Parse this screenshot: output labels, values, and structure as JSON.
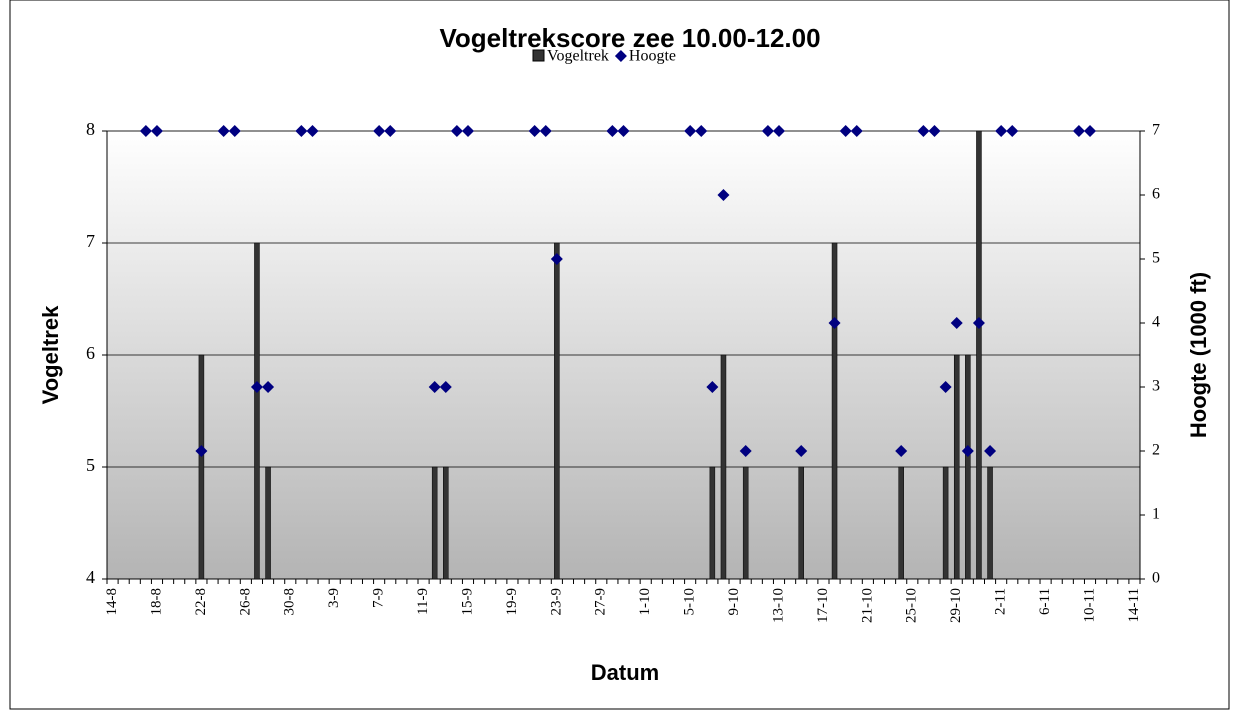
{
  "chart_data": {
    "type": "bar_line",
    "title": "Vogeltrekscore zee 10.00-12.00",
    "x_label": "Datum",
    "y_label": "Vogeltrek",
    "y2_label": "Hoogte (1000 ft)",
    "categories": [
      "14-8",
      null,
      null,
      null,
      "18-8",
      null,
      null,
      null,
      "22-8",
      null,
      null,
      null,
      "26-8",
      null,
      null,
      null,
      "30-8",
      null,
      null,
      null,
      "3-9",
      null,
      null,
      null,
      "7-9",
      null,
      null,
      null,
      "11-9",
      null,
      null,
      null,
      "15-9",
      null,
      null,
      null,
      "19-9",
      null,
      null,
      null,
      "23-9",
      null,
      null,
      null,
      "27-9",
      null,
      null,
      null,
      "1-10",
      null,
      null,
      null,
      "5-10",
      null,
      null,
      null,
      "9-10",
      null,
      null,
      null,
      "13-10",
      null,
      null,
      null,
      "17-10",
      null,
      null,
      null,
      "21-10",
      null,
      null,
      null,
      "25-10",
      null,
      null,
      null,
      "29-10",
      null,
      null,
      null,
      "2-11",
      null,
      null,
      null,
      "6-11",
      null,
      null,
      null,
      "10-11",
      null,
      null,
      null,
      "14-11"
    ],
    "series": [
      {
        "name": "Vogeltrek",
        "type": "bar",
        "color": "#333333",
        "values": [
          null,
          null,
          null,
          null,
          null,
          null,
          null,
          null,
          6,
          null,
          null,
          null,
          null,
          7,
          5,
          null,
          null,
          null,
          null,
          null,
          null,
          null,
          null,
          null,
          null,
          null,
          null,
          null,
          null,
          5,
          5,
          null,
          null,
          null,
          null,
          null,
          null,
          null,
          null,
          null,
          7,
          null,
          null,
          null,
          null,
          null,
          null,
          null,
          null,
          null,
          null,
          null,
          null,
          null,
          5,
          6,
          null,
          5,
          null,
          null,
          null,
          null,
          5,
          null,
          null,
          7,
          null,
          null,
          null,
          null,
          null,
          5,
          null,
          null,
          null,
          5,
          6,
          6,
          8,
          5,
          null,
          null,
          null,
          null,
          null,
          null,
          null,
          null,
          null,
          null,
          null,
          null,
          null
        ]
      },
      {
        "name": "Hoogte",
        "type": "scatter",
        "axis": "y2",
        "color": "#000080",
        "values": [
          null,
          null,
          null,
          7,
          7,
          null,
          null,
          null,
          2,
          null,
          7,
          7,
          null,
          3,
          3,
          null,
          null,
          7,
          7,
          null,
          null,
          null,
          null,
          null,
          7,
          7,
          null,
          null,
          null,
          3,
          3,
          7,
          7,
          null,
          null,
          null,
          null,
          null,
          7,
          7,
          5,
          null,
          null,
          null,
          null,
          7,
          7,
          null,
          null,
          null,
          null,
          null,
          7,
          7,
          3,
          6,
          null,
          2,
          null,
          7,
          7,
          null,
          2,
          null,
          null,
          4,
          7,
          7,
          null,
          null,
          null,
          2,
          null,
          7,
          7,
          3,
          4,
          2,
          4,
          2,
          7,
          7,
          null,
          null,
          null,
          null,
          null,
          7,
          7,
          null,
          null,
          null,
          null
        ]
      }
    ],
    "ylim": [
      4,
      8
    ],
    "yticks": [
      4,
      5,
      6,
      7,
      8
    ],
    "y2lim": [
      0,
      7
    ],
    "y2ticks": [
      0,
      1,
      2,
      3,
      4,
      5,
      6,
      7
    ],
    "grid": true,
    "legend": "top"
  }
}
